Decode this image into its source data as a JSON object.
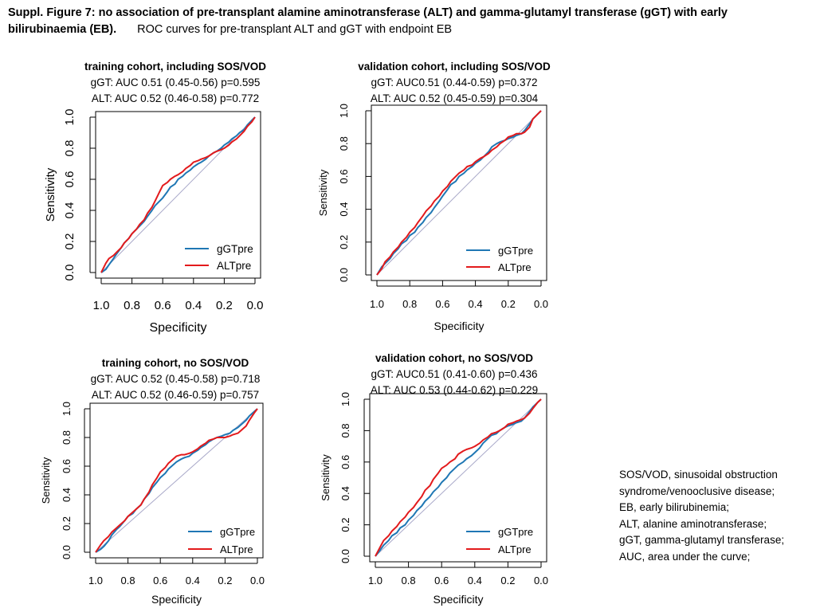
{
  "figure": {
    "caption_bold": "Suppl. Figure 7: no association of pre-transplant alamine aminotransferase (ALT) and gamma-glutamyl transferase (gGT) with early bilirubinaemia (EB).",
    "caption_rest": "ROC curves for pre-transplant ALT and gGT with endpoint EB"
  },
  "colors": {
    "ggt": "#1f77b4",
    "alt": "#e31a1c",
    "diagonal": "#a9a9c9"
  },
  "chart_data": [
    {
      "type": "line",
      "title": "training cohort, including SOS/VOD",
      "subtitle_ggt": "gGT: AUC 0.51 (0.45-0.56)  p=0.595",
      "subtitle_alt": "ALT: AUC 0.52 (0.46-0.58)  p=0.772",
      "xlabel": "Specificity",
      "ylabel": "Sensitivity",
      "xlim": [
        1.0,
        0.0
      ],
      "ylim": [
        0.0,
        1.0
      ],
      "xticks": [
        "1.0",
        "0.8",
        "0.6",
        "0.4",
        "0.2",
        "0.0"
      ],
      "yticks": [
        "0.0",
        "0.2",
        "0.4",
        "0.6",
        "0.8",
        "1.0"
      ],
      "legend": [
        "gGTpre",
        "ALTpre"
      ],
      "series": [
        {
          "name": "gGTpre",
          "specificity": [
            1.0,
            0.97,
            0.95,
            0.92,
            0.9,
            0.87,
            0.85,
            0.82,
            0.8,
            0.77,
            0.75,
            0.72,
            0.7,
            0.67,
            0.65,
            0.62,
            0.6,
            0.57,
            0.55,
            0.52,
            0.5,
            0.47,
            0.45,
            0.42,
            0.4,
            0.37,
            0.35,
            0.32,
            0.3,
            0.27,
            0.25,
            0.22,
            0.2,
            0.17,
            0.15,
            0.12,
            0.1,
            0.07,
            0.05,
            0.02,
            0.0
          ],
          "sensitivity": [
            0.0,
            0.02,
            0.05,
            0.09,
            0.12,
            0.16,
            0.19,
            0.22,
            0.25,
            0.28,
            0.3,
            0.33,
            0.36,
            0.4,
            0.43,
            0.46,
            0.48,
            0.52,
            0.55,
            0.57,
            0.6,
            0.62,
            0.64,
            0.66,
            0.68,
            0.7,
            0.71,
            0.73,
            0.75,
            0.77,
            0.78,
            0.8,
            0.82,
            0.84,
            0.86,
            0.88,
            0.9,
            0.92,
            0.95,
            0.98,
            1.0
          ]
        },
        {
          "name": "ALTpre",
          "specificity": [
            1.0,
            0.97,
            0.95,
            0.92,
            0.9,
            0.87,
            0.85,
            0.82,
            0.8,
            0.77,
            0.75,
            0.72,
            0.7,
            0.67,
            0.65,
            0.62,
            0.6,
            0.57,
            0.55,
            0.52,
            0.5,
            0.47,
            0.45,
            0.42,
            0.4,
            0.37,
            0.35,
            0.32,
            0.3,
            0.27,
            0.25,
            0.22,
            0.2,
            0.17,
            0.15,
            0.12,
            0.1,
            0.07,
            0.05,
            0.02,
            0.0
          ],
          "sensitivity": [
            0.0,
            0.06,
            0.09,
            0.11,
            0.13,
            0.16,
            0.19,
            0.22,
            0.25,
            0.28,
            0.31,
            0.34,
            0.38,
            0.42,
            0.46,
            0.52,
            0.56,
            0.58,
            0.6,
            0.62,
            0.63,
            0.65,
            0.67,
            0.69,
            0.71,
            0.72,
            0.73,
            0.74,
            0.75,
            0.77,
            0.78,
            0.79,
            0.8,
            0.82,
            0.84,
            0.86,
            0.88,
            0.91,
            0.94,
            0.97,
            1.0
          ]
        }
      ]
    },
    {
      "type": "line",
      "title": "validation cohort, including SOS/VOD",
      "subtitle_ggt": "gGT: AUC0.51 (0.44-0.59)  p=0.372",
      "subtitle_alt": "ALT: AUC 0.52 (0.45-0.59)  p=0.304",
      "xlabel": "Specificity",
      "ylabel": "Sensitivity",
      "xlim": [
        1.0,
        0.0
      ],
      "ylim": [
        0.0,
        1.0
      ],
      "xticks": [
        "1.0",
        "0.8",
        "0.6",
        "0.4",
        "0.2",
        "0.0"
      ],
      "yticks": [
        "0.0",
        "0.2",
        "0.4",
        "0.6",
        "0.8",
        "1.0"
      ],
      "legend": [
        "gGTpre",
        "ALTpre"
      ],
      "series": [
        {
          "name": "gGTpre",
          "specificity": [
            1.0,
            0.97,
            0.95,
            0.92,
            0.9,
            0.87,
            0.85,
            0.82,
            0.8,
            0.77,
            0.75,
            0.72,
            0.7,
            0.67,
            0.65,
            0.62,
            0.6,
            0.57,
            0.55,
            0.52,
            0.5,
            0.47,
            0.45,
            0.42,
            0.4,
            0.37,
            0.35,
            0.32,
            0.3,
            0.27,
            0.25,
            0.22,
            0.2,
            0.17,
            0.15,
            0.12,
            0.1,
            0.07,
            0.05,
            0.02,
            0.0
          ],
          "sensitivity": [
            0.0,
            0.05,
            0.07,
            0.1,
            0.13,
            0.16,
            0.19,
            0.21,
            0.24,
            0.26,
            0.29,
            0.32,
            0.35,
            0.38,
            0.41,
            0.45,
            0.48,
            0.52,
            0.55,
            0.57,
            0.6,
            0.62,
            0.64,
            0.66,
            0.68,
            0.7,
            0.72,
            0.75,
            0.78,
            0.8,
            0.81,
            0.82,
            0.83,
            0.84,
            0.85,
            0.86,
            0.88,
            0.92,
            0.95,
            0.98,
            1.0
          ]
        },
        {
          "name": "ALTpre",
          "specificity": [
            1.0,
            0.97,
            0.95,
            0.92,
            0.9,
            0.87,
            0.85,
            0.82,
            0.8,
            0.77,
            0.75,
            0.72,
            0.7,
            0.67,
            0.65,
            0.62,
            0.6,
            0.57,
            0.55,
            0.52,
            0.5,
            0.47,
            0.45,
            0.42,
            0.4,
            0.37,
            0.35,
            0.32,
            0.3,
            0.27,
            0.25,
            0.22,
            0.2,
            0.17,
            0.15,
            0.12,
            0.1,
            0.07,
            0.05,
            0.02,
            0.0
          ],
          "sensitivity": [
            0.0,
            0.04,
            0.08,
            0.11,
            0.14,
            0.17,
            0.2,
            0.23,
            0.26,
            0.29,
            0.32,
            0.36,
            0.39,
            0.42,
            0.45,
            0.48,
            0.51,
            0.54,
            0.57,
            0.6,
            0.62,
            0.64,
            0.66,
            0.67,
            0.69,
            0.71,
            0.72,
            0.74,
            0.76,
            0.78,
            0.8,
            0.82,
            0.84,
            0.85,
            0.86,
            0.86,
            0.87,
            0.9,
            0.95,
            0.98,
            1.0
          ]
        }
      ]
    },
    {
      "type": "line",
      "title": "training cohort, no SOS/VOD",
      "subtitle_ggt": "gGT: AUC 0.52 (0.45-0.58)  p=0.718",
      "subtitle_alt": "ALT: AUC 0.52 (0.46-0.59)  p=0.757",
      "xlabel": "Specificity",
      "ylabel": "Sensitivity",
      "xlim": [
        1.0,
        0.0
      ],
      "ylim": [
        0.0,
        1.0
      ],
      "xticks": [
        "1.0",
        "0.8",
        "0.6",
        "0.4",
        "0.2",
        "0.0"
      ],
      "yticks": [
        "0.0",
        "0.2",
        "0.4",
        "0.6",
        "0.8",
        "1.0"
      ],
      "legend": [
        "gGTpre",
        "ALTpre"
      ],
      "series": [
        {
          "name": "gGTpre",
          "specificity": [
            1.0,
            0.97,
            0.95,
            0.92,
            0.9,
            0.87,
            0.85,
            0.82,
            0.8,
            0.77,
            0.75,
            0.72,
            0.7,
            0.67,
            0.65,
            0.62,
            0.6,
            0.57,
            0.55,
            0.52,
            0.5,
            0.47,
            0.45,
            0.42,
            0.4,
            0.37,
            0.35,
            0.32,
            0.3,
            0.27,
            0.25,
            0.22,
            0.2,
            0.17,
            0.15,
            0.12,
            0.1,
            0.07,
            0.05,
            0.02,
            0.0
          ],
          "sensitivity": [
            0.0,
            0.02,
            0.04,
            0.08,
            0.12,
            0.16,
            0.18,
            0.22,
            0.25,
            0.27,
            0.3,
            0.33,
            0.37,
            0.41,
            0.45,
            0.49,
            0.52,
            0.55,
            0.58,
            0.61,
            0.63,
            0.65,
            0.66,
            0.67,
            0.69,
            0.71,
            0.73,
            0.75,
            0.77,
            0.79,
            0.8,
            0.81,
            0.82,
            0.83,
            0.85,
            0.87,
            0.89,
            0.92,
            0.95,
            0.98,
            1.0
          ]
        },
        {
          "name": "ALTpre",
          "specificity": [
            1.0,
            0.97,
            0.95,
            0.92,
            0.9,
            0.87,
            0.85,
            0.82,
            0.8,
            0.77,
            0.75,
            0.72,
            0.7,
            0.67,
            0.65,
            0.62,
            0.6,
            0.57,
            0.55,
            0.52,
            0.5,
            0.47,
            0.45,
            0.42,
            0.4,
            0.37,
            0.35,
            0.32,
            0.3,
            0.27,
            0.25,
            0.22,
            0.2,
            0.17,
            0.15,
            0.12,
            0.1,
            0.07,
            0.05,
            0.02,
            0.0
          ],
          "sensitivity": [
            0.0,
            0.05,
            0.08,
            0.11,
            0.14,
            0.17,
            0.19,
            0.22,
            0.25,
            0.28,
            0.3,
            0.33,
            0.37,
            0.42,
            0.47,
            0.52,
            0.56,
            0.59,
            0.62,
            0.65,
            0.67,
            0.68,
            0.68,
            0.69,
            0.7,
            0.72,
            0.74,
            0.76,
            0.78,
            0.79,
            0.8,
            0.8,
            0.8,
            0.81,
            0.82,
            0.83,
            0.85,
            0.88,
            0.92,
            0.97,
            1.0
          ]
        }
      ]
    },
    {
      "type": "line",
      "title": "validation cohort, no SOS/VOD",
      "subtitle_ggt": "gGT: AUC0.51 (0.41-0.60)  p=0.436",
      "subtitle_alt": "ALT: AUC 0.53 (0.44-0.62)  p=0.229",
      "xlabel": "Specificity",
      "ylabel": "Sensitivity",
      "xlim": [
        1.0,
        0.0
      ],
      "ylim": [
        0.0,
        1.0
      ],
      "xticks": [
        "1.0",
        "0.8",
        "0.6",
        "0.4",
        "0.2",
        "0.0"
      ],
      "yticks": [
        "0.0",
        "0.2",
        "0.4",
        "0.6",
        "0.8",
        "1.0"
      ],
      "legend": [
        "gGTpre",
        "ALTpre"
      ],
      "series": [
        {
          "name": "gGTpre",
          "specificity": [
            1.0,
            0.97,
            0.95,
            0.92,
            0.9,
            0.87,
            0.85,
            0.82,
            0.8,
            0.77,
            0.75,
            0.72,
            0.7,
            0.67,
            0.65,
            0.62,
            0.6,
            0.57,
            0.55,
            0.52,
            0.5,
            0.47,
            0.45,
            0.42,
            0.4,
            0.37,
            0.35,
            0.32,
            0.3,
            0.27,
            0.25,
            0.22,
            0.2,
            0.17,
            0.15,
            0.12,
            0.1,
            0.07,
            0.05,
            0.02,
            0.0
          ],
          "sensitivity": [
            0.0,
            0.04,
            0.07,
            0.1,
            0.13,
            0.15,
            0.18,
            0.2,
            0.23,
            0.26,
            0.29,
            0.32,
            0.35,
            0.38,
            0.41,
            0.44,
            0.47,
            0.5,
            0.53,
            0.56,
            0.58,
            0.6,
            0.62,
            0.64,
            0.66,
            0.69,
            0.72,
            0.75,
            0.77,
            0.78,
            0.8,
            0.82,
            0.83,
            0.84,
            0.85,
            0.86,
            0.88,
            0.92,
            0.95,
            0.98,
            1.0
          ]
        },
        {
          "name": "ALTpre",
          "specificity": [
            1.0,
            0.97,
            0.95,
            0.92,
            0.9,
            0.87,
            0.85,
            0.82,
            0.8,
            0.77,
            0.75,
            0.72,
            0.7,
            0.67,
            0.65,
            0.62,
            0.6,
            0.57,
            0.55,
            0.52,
            0.5,
            0.47,
            0.45,
            0.42,
            0.4,
            0.37,
            0.35,
            0.32,
            0.3,
            0.27,
            0.25,
            0.22,
            0.2,
            0.17,
            0.15,
            0.12,
            0.1,
            0.07,
            0.05,
            0.02,
            0.0
          ],
          "sensitivity": [
            0.0,
            0.06,
            0.1,
            0.13,
            0.16,
            0.19,
            0.22,
            0.25,
            0.28,
            0.31,
            0.34,
            0.38,
            0.42,
            0.45,
            0.49,
            0.53,
            0.56,
            0.58,
            0.6,
            0.62,
            0.65,
            0.67,
            0.68,
            0.69,
            0.7,
            0.72,
            0.74,
            0.76,
            0.78,
            0.79,
            0.8,
            0.82,
            0.84,
            0.85,
            0.86,
            0.87,
            0.88,
            0.91,
            0.94,
            0.98,
            1.0
          ]
        }
      ]
    }
  ],
  "notes": [
    "SOS/VOD, sinusoidal obstruction",
    "syndrome/venooclusive disease;",
    "EB, early bilirubinemia;",
    "ALT, alanine aminotransferase;",
    "gGT, gamma-glutamyl transferase;",
    "AUC, area under the curve;"
  ]
}
